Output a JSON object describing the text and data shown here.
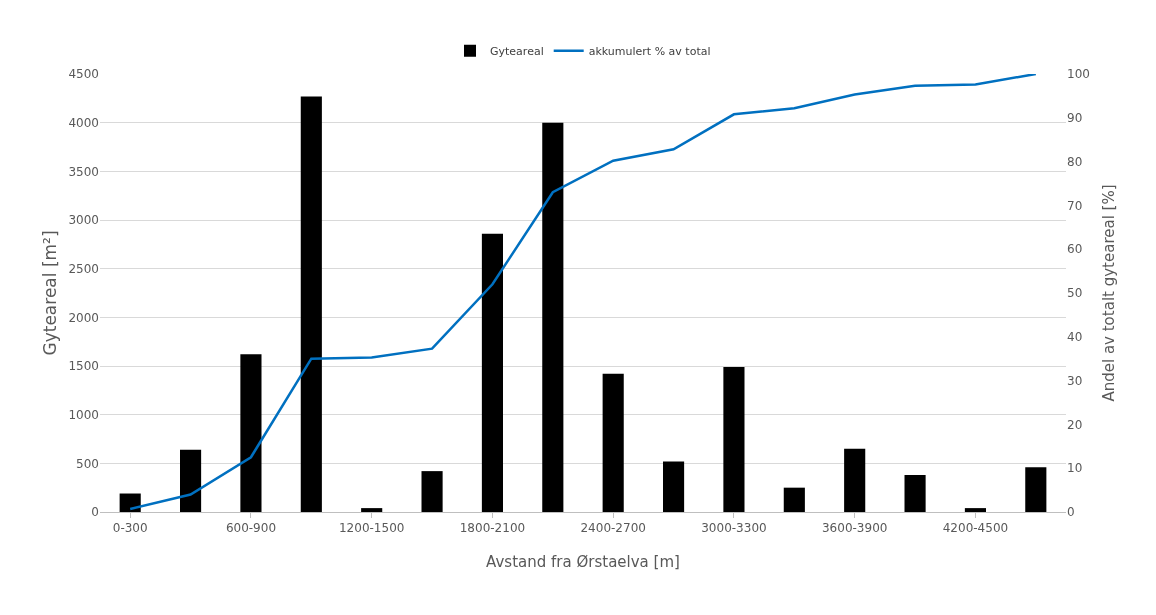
{
  "chart_data": {
    "type": "bar",
    "xlabel": "Avstand fra Ørstaelva [m]",
    "ylabel": "Gyteareal [m²]",
    "y2label": "Andel av totalt gyteareal [%]",
    "categories": [
      "0-300",
      null,
      "600-900",
      null,
      "1200-1500",
      null,
      "1800-2100",
      null,
      "2400-2700",
      null,
      "3000-3300",
      null,
      "3600-3900",
      null,
      "4200-4500",
      null
    ],
    "series": [
      {
        "name": "Gyteareal",
        "color": "#000000",
        "values": [
          190,
          640,
          1620,
          4270,
          40,
          420,
          2860,
          4000,
          1420,
          520,
          1490,
          250,
          650,
          380,
          40,
          460
        ]
      },
      {
        "name": "akkumulert % av total",
        "type": "line",
        "axis": "y2",
        "color": "#0070c0",
        "marker": "none",
        "line_style": "solid",
        "values": [
          0.7,
          4,
          12.5,
          35,
          35.3,
          37.3,
          52,
          73,
          80.2,
          82.8,
          90.8,
          92.2,
          95.3,
          97.3,
          97.6,
          100
        ]
      }
    ],
    "ylim": [
      0,
      4500
    ],
    "yticks": [
      0,
      500,
      1000,
      1500,
      2000,
      2500,
      3000,
      3500,
      4000,
      4500
    ],
    "y2lim": [
      0,
      100
    ],
    "y2ticks": [
      0,
      10,
      20,
      30,
      40,
      50,
      60,
      70,
      80,
      90,
      100
    ],
    "grid": "y",
    "legend": "top"
  }
}
